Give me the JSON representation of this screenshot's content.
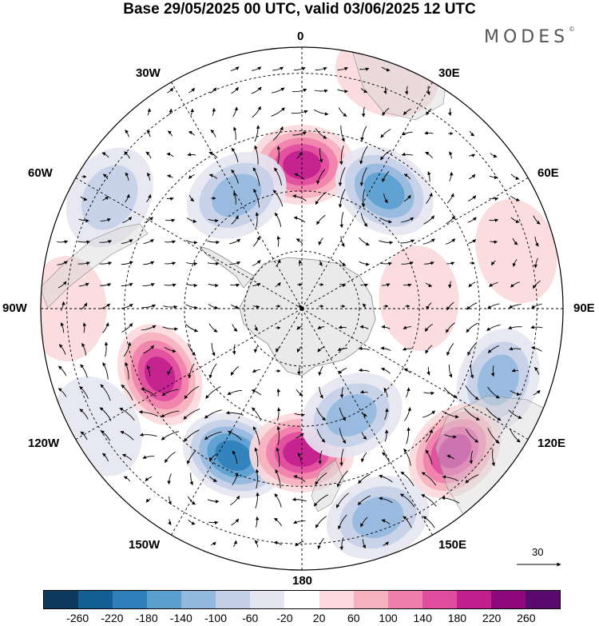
{
  "title": "Base 29/05/2025 00 UTC, valid 03/06/2025 12 UTC",
  "logo_text": "MODES",
  "logo_mark": "©",
  "longitude_labels": {
    "n0": "0",
    "n30e": "30E",
    "n60e": "60E",
    "n90e": "90E",
    "n120e": "120E",
    "n150e": "150E",
    "n180": "180",
    "n150w": "150W",
    "n120w": "120W",
    "n90w": "90W",
    "n60w": "60W",
    "n30w": "30W"
  },
  "reference_vector": {
    "label": "30"
  },
  "colorbar": {
    "colors": [
      "#0d3a5e",
      "#135f93",
      "#2f7fba",
      "#5aa0cf",
      "#93b8de",
      "#c4cfe7",
      "#e6e6f2",
      "#ffffff",
      "#fbd9dc",
      "#f6b0be",
      "#ef7fac",
      "#e04d9f",
      "#c21f8e",
      "#8e0a7c",
      "#5a0a6e"
    ],
    "labels": [
      "-260",
      "-220",
      "-180",
      "-140",
      "-100",
      "-60",
      "-20",
      "20",
      "60",
      "100",
      "140",
      "180",
      "220",
      "260"
    ]
  },
  "map_data": {
    "projection": "south-polar-stereographic",
    "anomalies": [
      {
        "lon": 0,
        "r": 0.55,
        "value": 230
      },
      {
        "lon": 35,
        "r": 0.55,
        "value": -160
      },
      {
        "lon": 330,
        "r": 0.5,
        "value": -150
      },
      {
        "lon": 300,
        "r": 0.85,
        "value": -90
      },
      {
        "lon": 75,
        "r": 0.85,
        "value": 60
      },
      {
        "lon": 245,
        "r": 0.6,
        "value": 220
      },
      {
        "lon": 205,
        "r": 0.62,
        "value": -230
      },
      {
        "lon": 180,
        "r": 0.55,
        "value": 220
      },
      {
        "lon": 155,
        "r": 0.45,
        "value": -140
      },
      {
        "lon": 110,
        "r": 0.8,
        "value": -150
      },
      {
        "lon": 133,
        "r": 0.8,
        "value": 200
      },
      {
        "lon": 160,
        "r": 0.85,
        "value": -150
      },
      {
        "lon": 270,
        "r": 0.9,
        "value": 60
      },
      {
        "lon": 240,
        "r": 0.9,
        "value": -40
      },
      {
        "lon": 20,
        "r": 0.95,
        "value": 60
      },
      {
        "lon": 85,
        "r": 0.45,
        "value": 40
      }
    ]
  }
}
